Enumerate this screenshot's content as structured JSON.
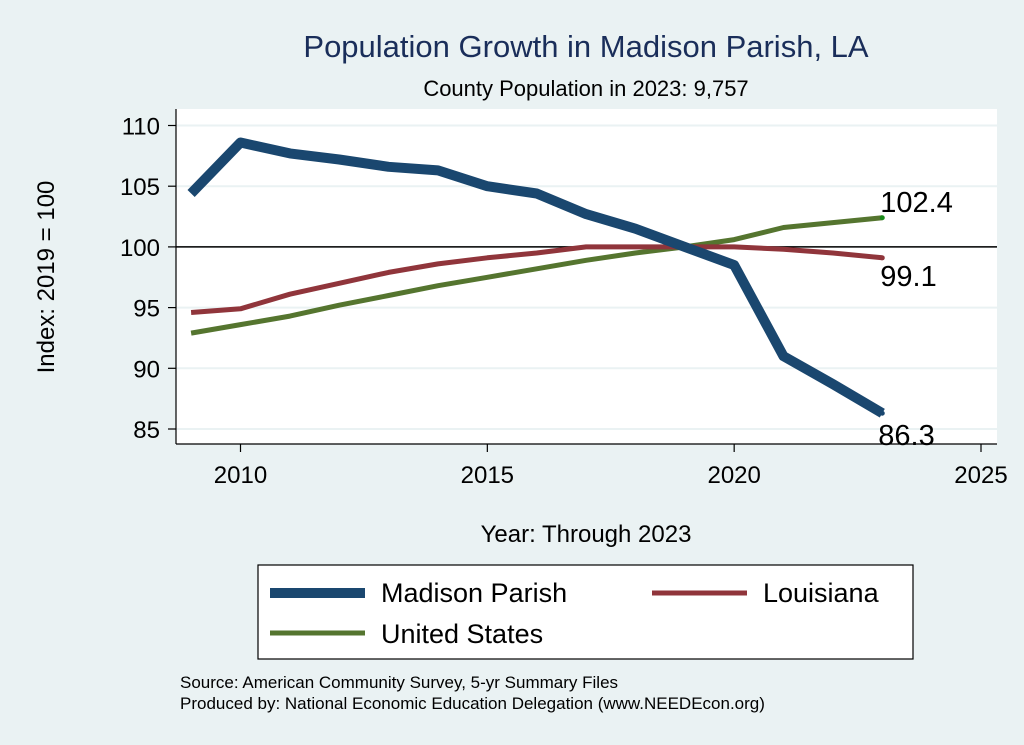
{
  "chart_data": {
    "type": "line",
    "title": "Population Growth in Madison Parish, LA",
    "subtitle": "County Population in 2023: 9,757",
    "xlabel": "Year: Through 2023",
    "ylabel": "Index: 2019 = 100",
    "xlim": [
      2009,
      2025
    ],
    "ylim": [
      85,
      110
    ],
    "xticks": [
      2010,
      2015,
      2020,
      2025
    ],
    "yticks": [
      85,
      90,
      95,
      100,
      105,
      110
    ],
    "reference_line": 100,
    "grid": true,
    "x": [
      2009,
      2010,
      2011,
      2012,
      2013,
      2014,
      2015,
      2016,
      2017,
      2018,
      2019,
      2020,
      2021,
      2022,
      2023
    ],
    "series": [
      {
        "name": "Madison Parish",
        "color": "#1a476f",
        "values": [
          104.4,
          108.6,
          107.7,
          107.2,
          106.6,
          106.3,
          105.0,
          104.4,
          102.7,
          101.5,
          100.0,
          98.5,
          91.0,
          88.7,
          86.3
        ],
        "end_label": "86.3"
      },
      {
        "name": "Louisiana",
        "color": "#90353b",
        "values": [
          94.6,
          94.9,
          96.1,
          97.0,
          97.9,
          98.6,
          99.1,
          99.5,
          100.0,
          100.0,
          100.0,
          100.0,
          99.8,
          99.5,
          99.1
        ],
        "end_label": "99.1"
      },
      {
        "name": "United States",
        "color": "#55752f",
        "values": [
          92.9,
          93.6,
          94.3,
          95.2,
          96.0,
          96.8,
          97.5,
          98.2,
          98.9,
          99.5,
          100.0,
          100.6,
          101.6,
          102.0,
          102.4
        ],
        "end_label": "102.4"
      }
    ],
    "legend": {
      "position": "bottom",
      "items": [
        "Madison Parish",
        "Louisiana",
        "United States"
      ]
    },
    "notes": [
      "Source: American Community Survey, 5-yr Summary Files",
      "Produced by: National Economic Education Delegation (www.NEEDEcon.org)"
    ]
  },
  "colors": {
    "background": "#eaf2f3",
    "plot_background": "#ffffff",
    "grid": "#eaf2f3",
    "title": "#1a2e5a"
  }
}
